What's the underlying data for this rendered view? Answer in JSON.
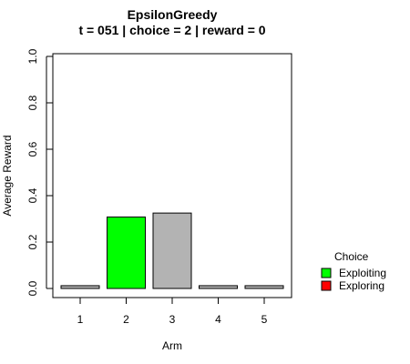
{
  "chart_data": {
    "type": "bar",
    "title": "EpsilonGreedy",
    "subtitle": "t = 051 | choice = 2 | reward = 0",
    "xlabel": "Arm",
    "ylabel": "Average Reward",
    "categories": [
      "1",
      "2",
      "3",
      "4",
      "5"
    ],
    "values": [
      0.012,
      0.308,
      0.325,
      0.012,
      0.012
    ],
    "bar_status": [
      "other",
      "Exploiting",
      "other",
      "other",
      "other"
    ],
    "ylim": [
      0,
      1
    ],
    "yticks": [
      "0.0",
      "0.2",
      "0.4",
      "0.6",
      "0.8",
      "1.0"
    ],
    "grid": false,
    "legend": {
      "title": "Choice",
      "placement": "right",
      "entries": [
        {
          "label": "Exploiting",
          "color": "#00ff00"
        },
        {
          "label": "Exploring",
          "color": "#ff0000"
        }
      ]
    },
    "colors": {
      "other": "#b3b3b3",
      "Exploiting": "#00ff00",
      "Exploring": "#ff0000"
    }
  }
}
